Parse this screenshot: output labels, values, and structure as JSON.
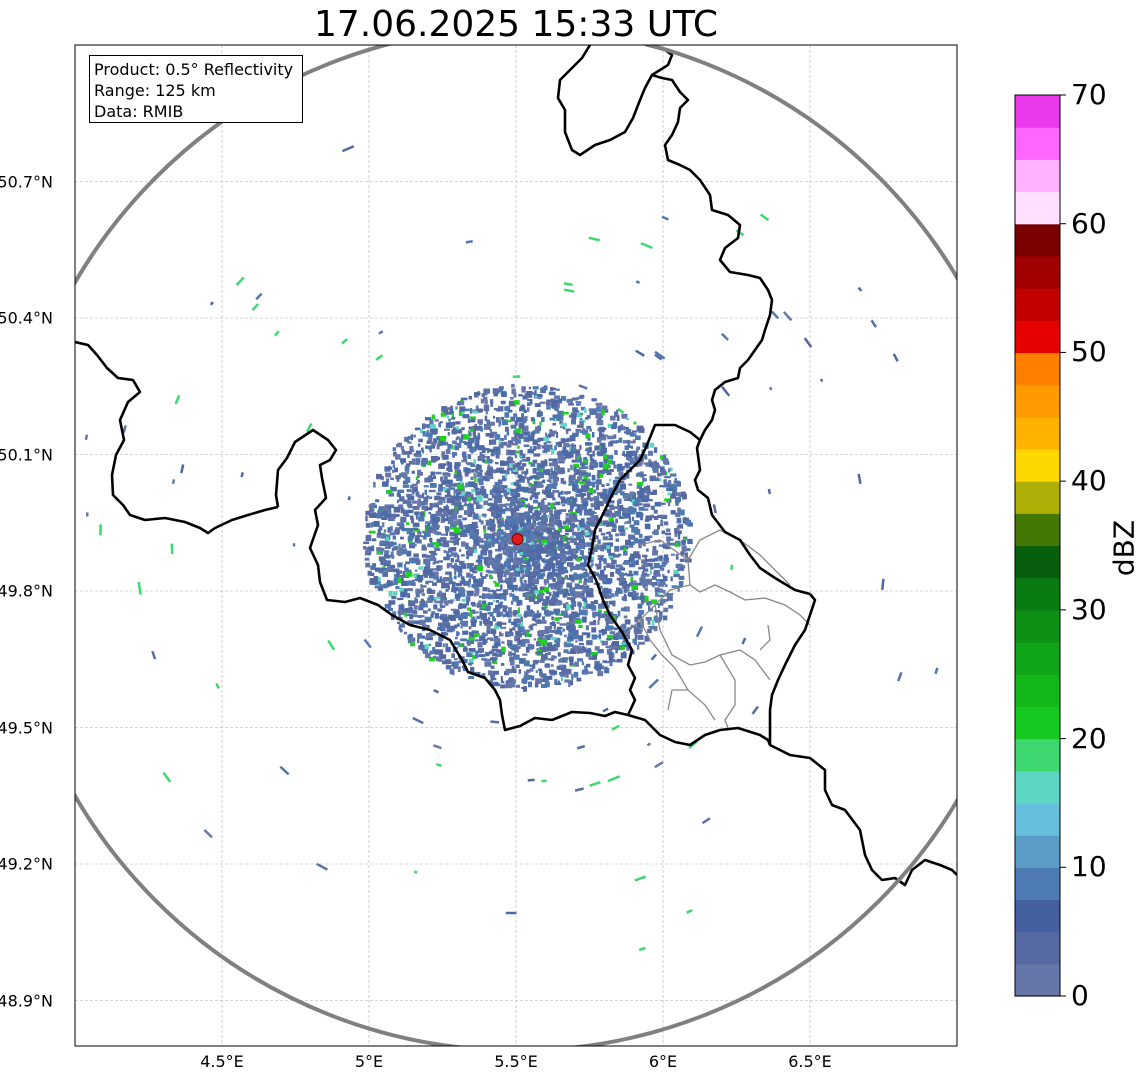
{
  "title": "17.06.2025 15:33 UTC",
  "info_box": {
    "product": "Product: 0.5° Reflectivity",
    "range": "Range: 125 km",
    "data": "Data: RMIB"
  },
  "lat_ticks": [
    {
      "label": "50.7°N",
      "value": 50.7
    },
    {
      "label": "50.4°N",
      "value": 50.4
    },
    {
      "label": "50.1°N",
      "value": 50.1
    },
    {
      "label": "49.8°N",
      "value": 49.8
    },
    {
      "label": "49.5°N",
      "value": 49.5
    },
    {
      "label": "49.2°N",
      "value": 49.2
    },
    {
      "label": "48.9°N",
      "value": 48.9
    }
  ],
  "lon_ticks": [
    {
      "label": "4.5°E",
      "value": 4.5
    },
    {
      "label": "5°E",
      "value": 5.0
    },
    {
      "label": "5.5°E",
      "value": 5.5
    },
    {
      "label": "6°E",
      "value": 6.0
    },
    {
      "label": "6.5°E",
      "value": 6.5
    }
  ],
  "map_extent": {
    "lon": [
      4.0,
      7.0
    ],
    "lat": [
      48.8,
      51.0
    ]
  },
  "radar_site": {
    "lon": 5.505,
    "lat": 49.914
  },
  "range_circle_km": 125,
  "colorbar": {
    "label": "dBZ",
    "min": 0,
    "max": 70,
    "ticks": [
      {
        "label": "0",
        "value": 0
      },
      {
        "label": "10",
        "value": 10
      },
      {
        "label": "20",
        "value": 20
      },
      {
        "label": "30",
        "value": 30
      },
      {
        "label": "40",
        "value": 40
      },
      {
        "label": "50",
        "value": 50
      },
      {
        "label": "60",
        "value": 60
      },
      {
        "label": "70",
        "value": 70
      }
    ],
    "colors": [
      "#6776a8",
      "#566aa1",
      "#4560a1",
      "#4e7bb4",
      "#5c9dc8",
      "#66c0dc",
      "#5dd6c4",
      "#3ed870",
      "#14c91f",
      "#12b81a",
      "#10a418",
      "#0d9014",
      "#0a7a12",
      "#075e0c",
      "#437706",
      "#aeb008",
      "#fdd700",
      "#ffb200",
      "#ff9a00",
      "#ff7f00",
      "#e70000",
      "#c20000",
      "#a00000",
      "#7a0000",
      "#ffe0ff",
      "#ffb3ff",
      "#ff66ff",
      "#ec38ed"
    ]
  },
  "styles": {
    "border_color": "#000000",
    "region_border_color": "#888888",
    "range_circle_color": "#808080",
    "grid_color": "#b0b0b0",
    "radar_site_color": "#e31a1c",
    "echo_base_color": "#5a6fa6",
    "echo_green_color": "#22d022"
  }
}
